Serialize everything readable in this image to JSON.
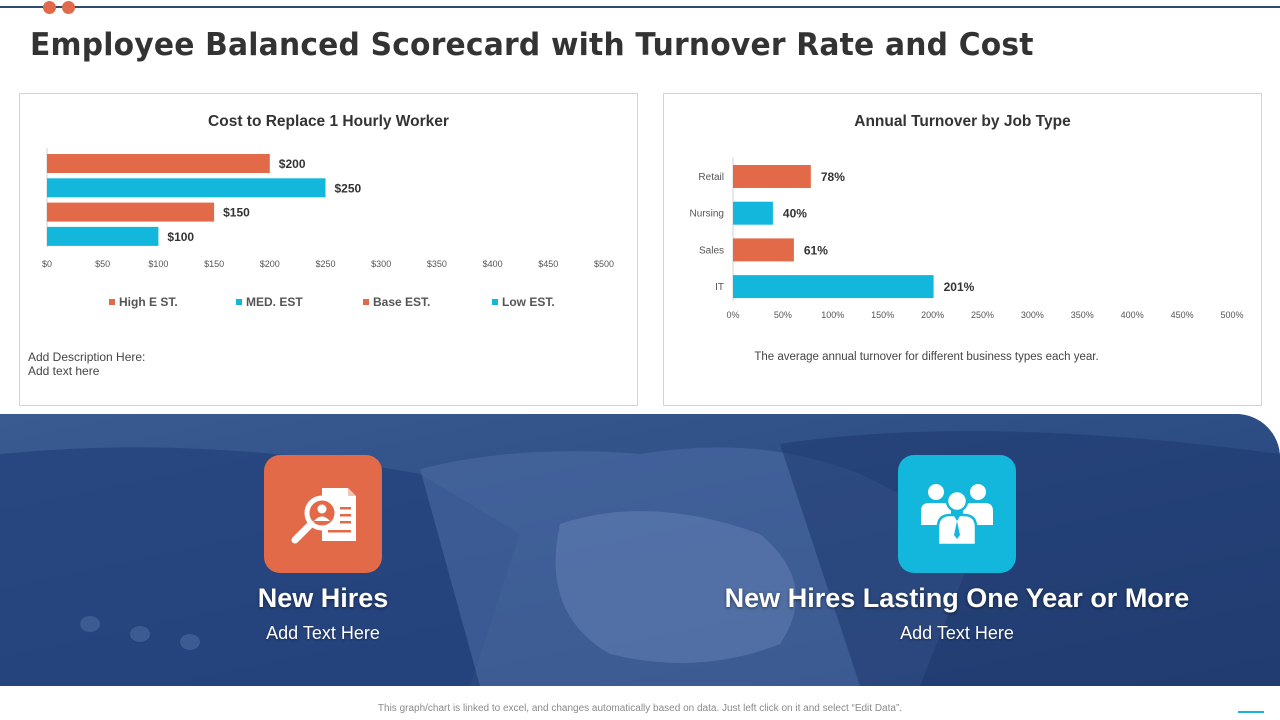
{
  "page": {
    "title": "Employee Balanced Scorecard with Turnover Rate and Cost",
    "footer_note": "This graph/chart is linked to excel, and changes automatically based on data. Just left click on it and select “Edit Data”."
  },
  "colors": {
    "orange": "#e36a48",
    "cyan": "#13b7dc",
    "navy": "#2a4a80"
  },
  "left_card": {
    "description_line1": "Add Description Here:",
    "description_line2": "Add text here"
  },
  "right_card": {
    "caption": "The average annual turnover for different business types each year."
  },
  "chart_data": [
    {
      "type": "bar",
      "orientation": "horizontal",
      "title": "Cost to Replace 1 Hourly Worker",
      "categories": [
        "High EST.",
        "MED. EST",
        "Base EST.",
        "Low EST."
      ],
      "values": [
        200,
        250,
        150,
        100
      ],
      "data_labels": [
        "$200",
        "$250",
        "$150",
        "$100"
      ],
      "bar_colors": [
        "#e36a48",
        "#13b7dc",
        "#e36a48",
        "#13b7dc"
      ],
      "xlim": [
        0,
        500
      ],
      "x_ticks": [
        0,
        50,
        100,
        150,
        200,
        250,
        300,
        350,
        400,
        450,
        500
      ],
      "x_tick_labels": [
        "$0",
        "$50",
        "$100",
        "$150",
        "$200",
        "$250",
        "$300",
        "$350",
        "$400",
        "$450",
        "$500"
      ],
      "legend": [
        {
          "label": "High E ST.",
          "color": "#e36a48"
        },
        {
          "label": "MED. EST",
          "color": "#13b7dc"
        },
        {
          "label": "Base EST.",
          "color": "#e36a48"
        },
        {
          "label": "Low EST.",
          "color": "#13b7dc"
        }
      ],
      "legend_position": "bottom"
    },
    {
      "type": "bar",
      "orientation": "horizontal",
      "title": "Annual Turnover by Job Type",
      "categories": [
        "Retail",
        "Nursing",
        "Sales",
        "IT"
      ],
      "values": [
        78,
        40,
        61,
        201
      ],
      "data_labels": [
        "78%",
        "40%",
        "61%",
        "201%"
      ],
      "bar_colors": [
        "#e36a48",
        "#13b7dc",
        "#e36a48",
        "#13b7dc"
      ],
      "xlim": [
        0,
        500
      ],
      "x_ticks": [
        0,
        50,
        100,
        150,
        200,
        250,
        300,
        350,
        400,
        450,
        500
      ],
      "x_tick_labels": [
        "0%",
        "50%",
        "100%",
        "150%",
        "200%",
        "250%",
        "300%",
        "350%",
        "400%",
        "450%",
        "500%"
      ]
    }
  ],
  "features": [
    {
      "title": "New Hires",
      "subtitle": "Add Text Here",
      "icon": "candidate-search-icon"
    },
    {
      "title": "New Hires Lasting One Year or More",
      "subtitle": "Add Text Here",
      "icon": "team-group-icon"
    }
  ]
}
